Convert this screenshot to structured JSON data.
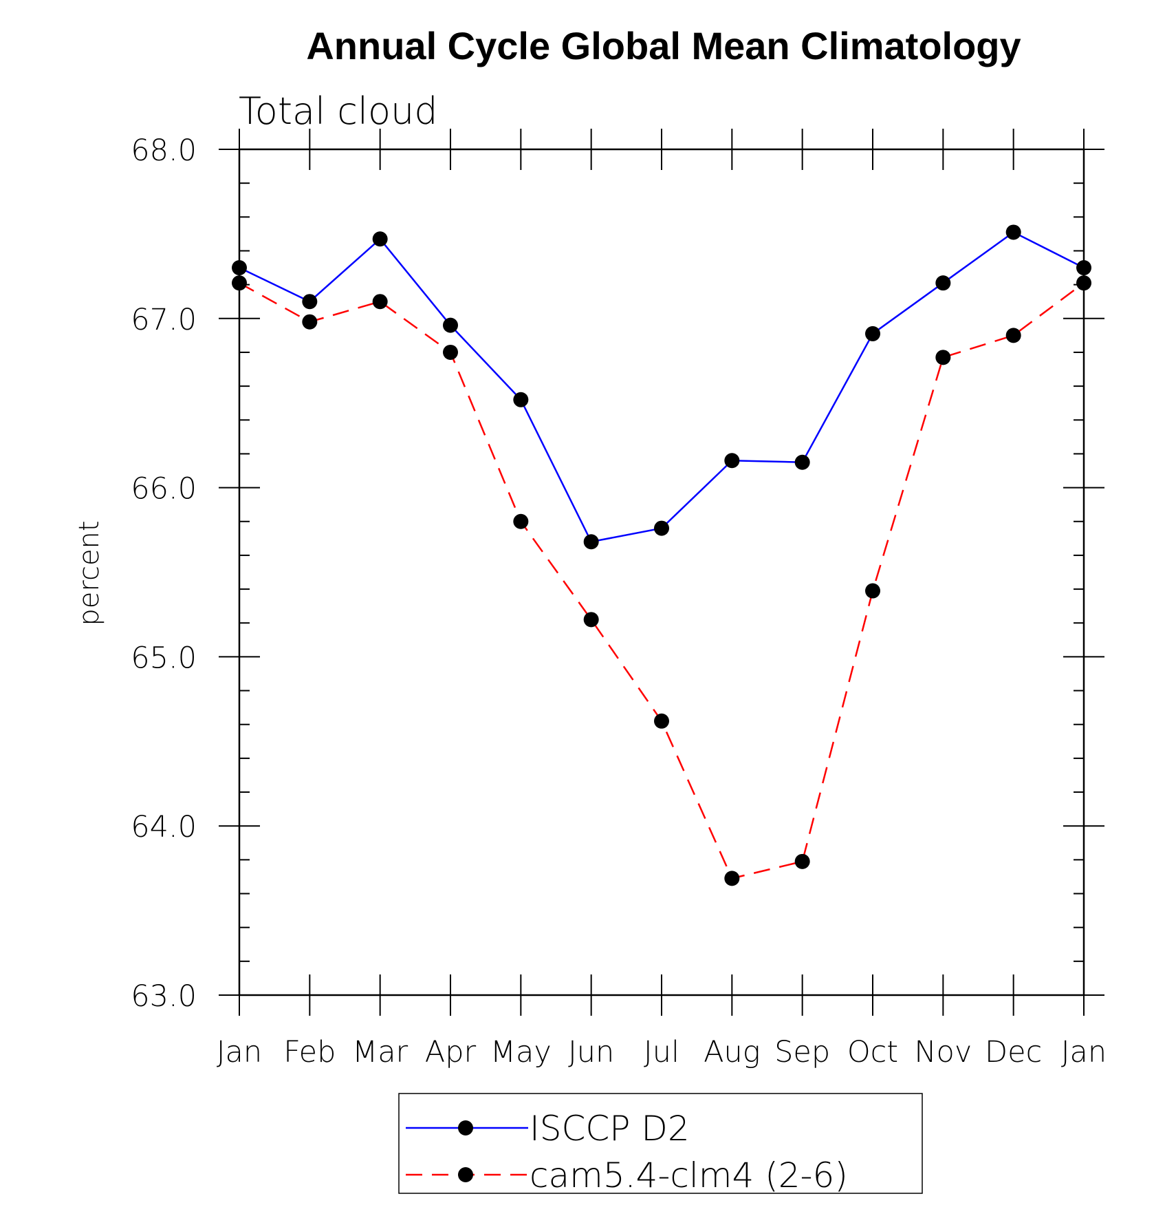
{
  "chart_data": {
    "type": "line",
    "title": "Annual Cycle Global Mean Climatology",
    "subtitle": "Total cloud",
    "ylabel": "percent",
    "xlabel": "",
    "categories": [
      "Jan",
      "Feb",
      "Mar",
      "Apr",
      "May",
      "Jun",
      "Jul",
      "Aug",
      "Sep",
      "Oct",
      "Nov",
      "Dec",
      "Jan"
    ],
    "ylim": [
      63.0,
      68.0
    ],
    "yticks": [
      "63.0",
      "64.0",
      "65.0",
      "66.0",
      "67.0",
      "68.0"
    ],
    "y_minor_step": 0.2,
    "grid": false,
    "legend_position": "bottom-center",
    "series": [
      {
        "name": "ISCCP D2",
        "color": "#0000ff",
        "dash": "solid",
        "marker": "filled-circle",
        "values": [
          67.3,
          67.1,
          67.47,
          66.96,
          66.52,
          65.68,
          65.76,
          66.16,
          66.15,
          66.91,
          67.21,
          67.51,
          67.3
        ]
      },
      {
        "name": "cam5.4-clm4 (2-6)",
        "color": "#ff0000",
        "dash": "dashed",
        "marker": "filled-circle",
        "values": [
          67.21,
          66.98,
          67.1,
          66.8,
          65.8,
          65.22,
          64.62,
          63.69,
          63.79,
          65.39,
          66.77,
          66.9,
          67.21
        ]
      }
    ]
  }
}
